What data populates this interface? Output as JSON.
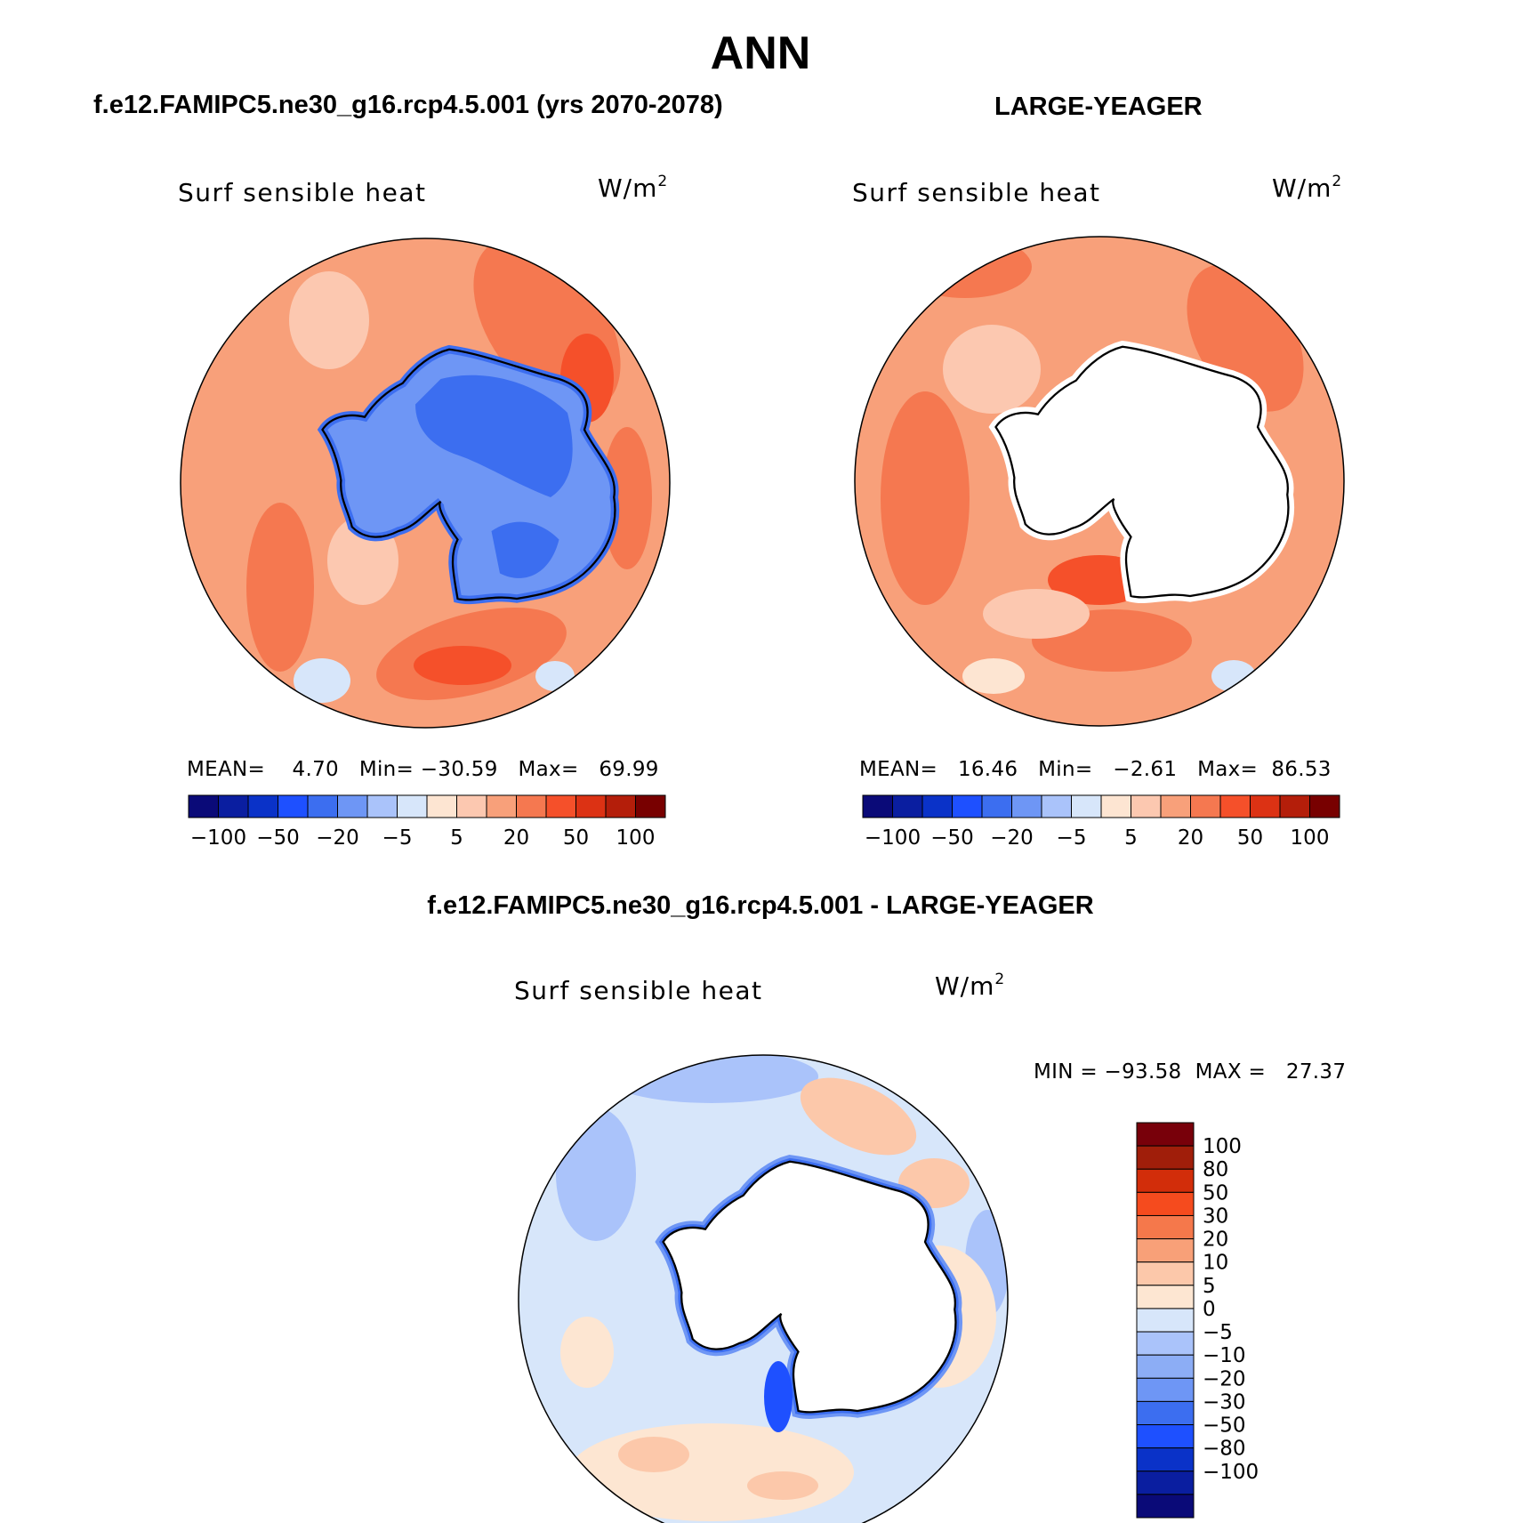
{
  "title": "ANN",
  "panels": {
    "left": {
      "case": "f.e12.FAMIPC5.ne30_g16.rcp4.5.001 (yrs 2070-2078)",
      "variable": "Surf sensible heat",
      "units": "W/m",
      "units_exp": "2",
      "stats": {
        "mean_label": "MEAN=",
        "mean": "4.70",
        "min_label": "Min=",
        "min": "−30.59",
        "max_label": "Max=",
        "max": "69.99"
      }
    },
    "right": {
      "case": "LARGE-YEAGER",
      "variable": "Surf sensible heat",
      "units": "W/m",
      "units_exp": "2",
      "stats": {
        "mean_label": "MEAN=",
        "mean": "16.46",
        "min_label": "Min=",
        "min": "−2.61",
        "max_label": "Max=",
        "max": "86.53"
      }
    },
    "diff": {
      "case": "f.e12.FAMIPC5.ne30_g16.rcp4.5.001 - LARGE-YEAGER",
      "variable": "Surf sensible heat",
      "units": "W/m",
      "units_exp": "2",
      "stats": {
        "text": "MIN = −93.58  MAX =   27.37"
      }
    }
  },
  "colorbar_main": {
    "colors": [
      "#0a0a78",
      "#0a1ea0",
      "#0a32c8",
      "#1e50ff",
      "#3c6ef0",
      "#6e96f5",
      "#aac3fa",
      "#d7e6fa",
      "#fde5d2",
      "#fcc8b0",
      "#f8a07a",
      "#f57850",
      "#f5502a",
      "#dc3214",
      "#b41e0a",
      "#780000"
    ],
    "tick_labels": [
      "−100",
      "−50",
      "−20",
      "−5",
      "5",
      "20",
      "50",
      "100"
    ]
  },
  "colorbar_diff": {
    "colors": [
      "#78000a",
      "#a01e0a",
      "#d22d0a",
      "#f54b1e",
      "#f5784b",
      "#f8a078",
      "#fcc8aa",
      "#fde6d2",
      "#d7e6fa",
      "#aac3fa",
      "#8cadf5",
      "#6e96f5",
      "#3c6ef0",
      "#1e50ff",
      "#0a32c8",
      "#0a1ea0",
      "#0a0a78"
    ],
    "tick_labels": [
      "100",
      "80",
      "50",
      "30",
      "20",
      "10",
      "5",
      "0",
      "−5",
      "−10",
      "−20",
      "−30",
      "−50",
      "−80",
      "−100"
    ]
  }
}
